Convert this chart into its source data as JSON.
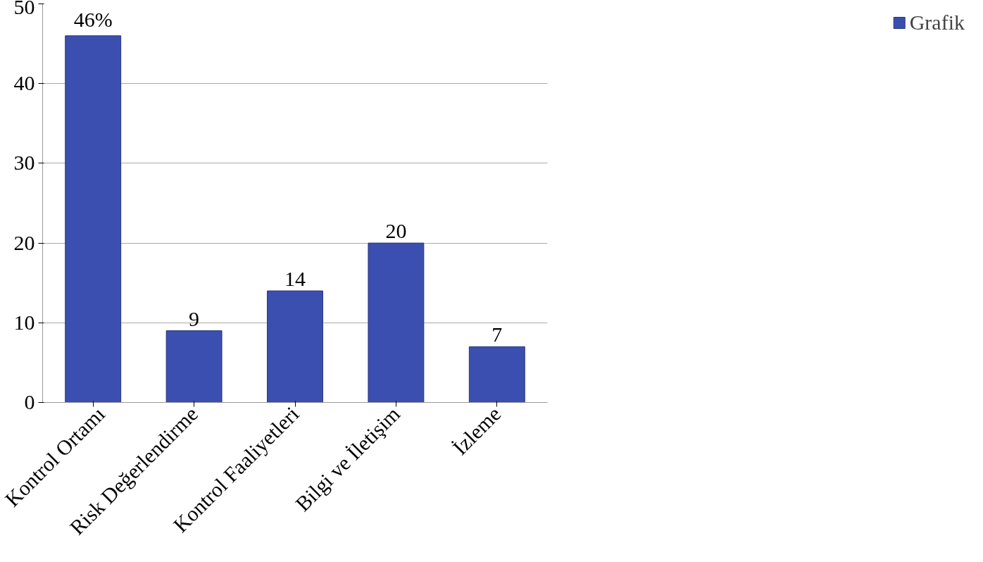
{
  "chart_data": {
    "type": "bar",
    "categories": [
      "Kontrol Ortamı",
      "Risk Değerlendirme",
      "Kontrol Faaliyetleri",
      "Bilgi ve İletişim",
      "İzleme"
    ],
    "series": [
      {
        "name": "Grafik",
        "color": "#3b4fb0",
        "values": [
          46,
          9,
          14,
          20,
          7
        ],
        "value_labels": [
          "46%",
          "9",
          "14",
          "20",
          "7"
        ]
      }
    ],
    "ylim": [
      0,
      50
    ],
    "yticks": [
      0,
      10,
      20,
      30,
      40,
      50
    ],
    "grid": "y",
    "legend": "right"
  }
}
